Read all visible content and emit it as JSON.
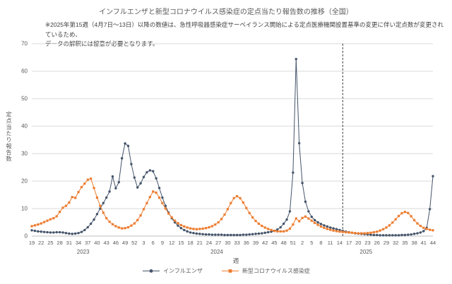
{
  "page": {
    "title": "インフルエンザと新型コロナウイルス感染症の定点当たり報告数の推移（全国）",
    "note_line1": "※2025年第15週（4月7日～13日）以降の数値は、急性呼吸器感染症サーベイランス開始による定点医療機関設置基準の変更に伴い定点数が変更されているため、",
    "note_line2": "データの解釈には留意が必要となります。"
  },
  "chart_data": {
    "type": "line",
    "title": "インフルエンザと新型コロナウイルス感染症の定点当たり報告数の推移（全国）",
    "xlabel": "週",
    "ylabel": "定点当たり報告数",
    "ylim": [
      0,
      70
    ],
    "ytick_interval": 10,
    "grid": "horizontal",
    "legend_position": "bottom",
    "tick_every": 3,
    "tick_labels": [
      "19",
      "22",
      "25",
      "28",
      "31",
      "34",
      "37",
      "40",
      "43",
      "46",
      "49",
      "52",
      "3",
      "6",
      "9",
      "12",
      "15",
      "18",
      "21",
      "24",
      "27",
      "30",
      "33",
      "36",
      "39",
      "42",
      "45",
      "48",
      "51",
      "2",
      "5",
      "8",
      "11",
      "14",
      "17",
      "20",
      "23",
      "26",
      "29",
      "32",
      "35",
      "38",
      "41",
      "44"
    ],
    "year_labels": [
      {
        "label": "2023",
        "start_index": 0,
        "end_index": 33
      },
      {
        "label": "2024",
        "start_index": 34,
        "end_index": 85
      },
      {
        "label": "2025",
        "start_index": 86,
        "end_index": 129
      }
    ],
    "dashed_vline_index": 100,
    "colors": {
      "grid": "#d9d9d9",
      "axis": "#bfbfbf",
      "text": "#595959",
      "dashed_line": "#404040"
    },
    "series": [
      {
        "name": "インフルエンザ",
        "color": "#44546a",
        "marker": "circle",
        "values": [
          2.1,
          1.9,
          1.7,
          1.6,
          1.5,
          1.4,
          1.3,
          1.3,
          1.4,
          1.4,
          1.3,
          1.1,
          0.9,
          0.8,
          0.9,
          1.1,
          1.5,
          2.2,
          3.2,
          4.5,
          6.0,
          8.0,
          10.0,
          12.0,
          14.0,
          16.2,
          21.7,
          17.4,
          19.6,
          28.3,
          33.7,
          32.8,
          26.2,
          21.3,
          17.7,
          19.2,
          21.5,
          23.2,
          23.9,
          23.6,
          21.0,
          17.5,
          14.0,
          11.0,
          8.5,
          6.5,
          5.0,
          3.8,
          2.9,
          2.2,
          1.7,
          1.3,
          1.1,
          0.9,
          0.8,
          0.7,
          0.6,
          0.6,
          0.5,
          0.5,
          0.5,
          0.5,
          0.4,
          0.4,
          0.4,
          0.4,
          0.4,
          0.4,
          0.5,
          0.5,
          0.6,
          0.7,
          0.8,
          0.9,
          1.0,
          1.2,
          1.4,
          1.6,
          1.9,
          2.4,
          3.2,
          4.5,
          6.0,
          9.0,
          23.1,
          64.4,
          33.8,
          19.3,
          12.5,
          9.0,
          7.0,
          5.8,
          5.0,
          4.4,
          3.9,
          3.5,
          3.1,
          2.8,
          2.5,
          2.2,
          1.9,
          1.6,
          1.4,
          1.2,
          1.0,
          0.9,
          0.8,
          0.7,
          0.6,
          0.5,
          0.4,
          0.4,
          0.3,
          0.3,
          0.3,
          0.3,
          0.3,
          0.3,
          0.3,
          0.4,
          0.4,
          0.5,
          0.6,
          0.8,
          1.0,
          1.3,
          1.8,
          3.0,
          9.8,
          21.8
        ]
      },
      {
        "name": "新型コロナウイルス感染症",
        "color": "#ed7d31",
        "marker": "square",
        "values": [
          3.6,
          3.9,
          4.2,
          4.6,
          5.1,
          5.6,
          6.1,
          6.5,
          7.2,
          8.8,
          10.3,
          11.0,
          12.2,
          14.2,
          13.9,
          16.0,
          17.8,
          19.1,
          20.5,
          20.9,
          17.5,
          14.0,
          11.0,
          8.5,
          6.5,
          5.2,
          4.3,
          3.6,
          3.1,
          2.8,
          2.9,
          3.2,
          3.8,
          4.6,
          5.8,
          7.5,
          9.8,
          12.0,
          14.2,
          16.2,
          15.8,
          14.0,
          12.0,
          10.0,
          8.2,
          6.8,
          5.6,
          4.7,
          4.0,
          3.5,
          3.1,
          2.8,
          2.6,
          2.5,
          2.6,
          2.7,
          2.9,
          3.2,
          3.6,
          4.2,
          5.0,
          6.2,
          7.8,
          9.8,
          12.0,
          13.8,
          14.5,
          13.8,
          12.2,
          10.2,
          8.4,
          6.8,
          5.5,
          4.5,
          3.7,
          3.1,
          2.6,
          2.2,
          1.9,
          1.7,
          1.7,
          1.7,
          2.0,
          2.7,
          4.2,
          6.4,
          5.4,
          6.6,
          7.1,
          6.4,
          5.6,
          4.8,
          4.1,
          3.5,
          3.0,
          2.6,
          2.3,
          2.0,
          1.8,
          1.6,
          1.5,
          1.4,
          1.3,
          1.2,
          1.1,
          1.0,
          1.0,
          1.0,
          1.1,
          1.2,
          1.4,
          1.6,
          2.0,
          2.5,
          3.1,
          3.9,
          4.9,
          6.1,
          7.3,
          8.3,
          8.8,
          8.4,
          7.2,
          5.8,
          4.6,
          3.7,
          3.0,
          2.6,
          2.3,
          2.1
        ]
      }
    ]
  }
}
